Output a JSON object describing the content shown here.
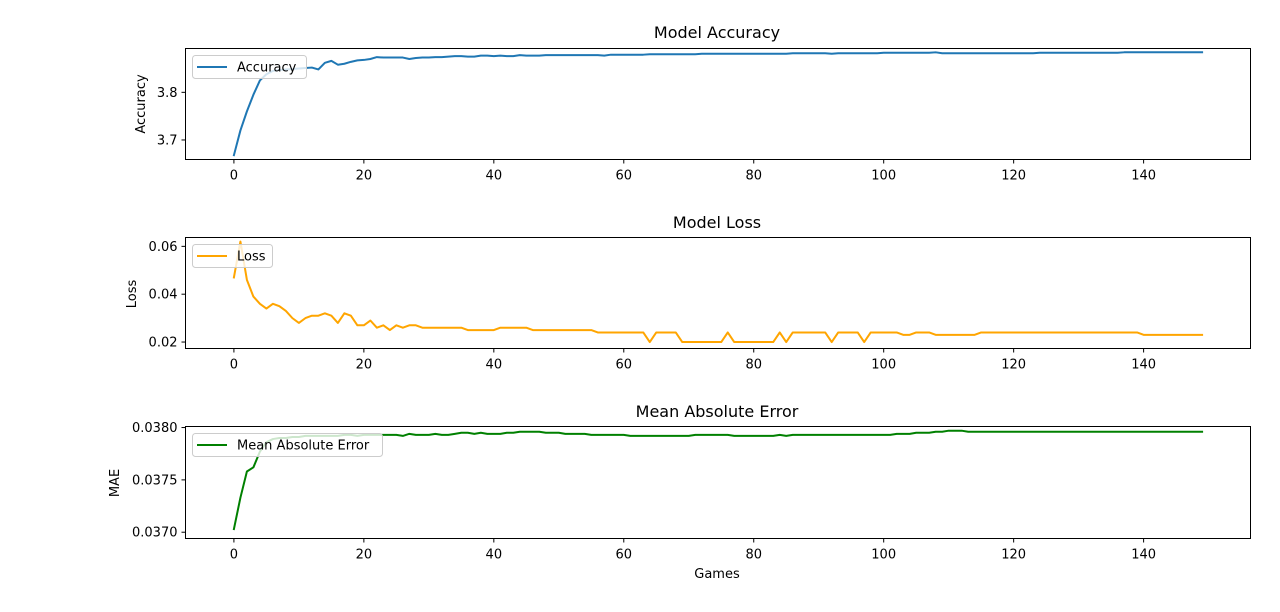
{
  "figure": {
    "xlabel": "Games"
  },
  "chart_data": [
    {
      "type": "line",
      "title": "Model Accuracy",
      "xlabel": "",
      "ylabel": "Accuracy",
      "xlim": [
        -7.45,
        156.45
      ],
      "ylim": [
        3.659,
        3.892
      ],
      "xticks": [
        0,
        20,
        40,
        60,
        80,
        100,
        120,
        140
      ],
      "yticks": [
        3.7,
        3.8
      ],
      "ytick_labels": [
        "3.7",
        "3.8"
      ],
      "legend": "upper left",
      "series": [
        {
          "name": "Accuracy",
          "color": "#1f77b4",
          "x": [
            0,
            1,
            2,
            3,
            4,
            5,
            6,
            7,
            8,
            9,
            10,
            11,
            12,
            13,
            14,
            15,
            16,
            17,
            18,
            19,
            20,
            21,
            22,
            23,
            24,
            25,
            26,
            27,
            28,
            29,
            30,
            31,
            32,
            33,
            34,
            35,
            36,
            37,
            38,
            39,
            40,
            41,
            42,
            43,
            44,
            45,
            46,
            47,
            48,
            49,
            50,
            51,
            52,
            53,
            54,
            55,
            56,
            57,
            58,
            59,
            60,
            61,
            62,
            63,
            64,
            65,
            66,
            67,
            68,
            69,
            70,
            71,
            72,
            73,
            74,
            75,
            76,
            77,
            78,
            79,
            80,
            81,
            82,
            83,
            84,
            85,
            86,
            87,
            88,
            89,
            90,
            91,
            92,
            93,
            94,
            95,
            96,
            97,
            98,
            99,
            100,
            101,
            102,
            103,
            104,
            105,
            106,
            107,
            108,
            109,
            110,
            111,
            112,
            113,
            114,
            115,
            116,
            117,
            118,
            119,
            120,
            121,
            122,
            123,
            124,
            125,
            126,
            127,
            128,
            129,
            130,
            131,
            132,
            133,
            134,
            135,
            136,
            137,
            138,
            139,
            140,
            141,
            142,
            143,
            144,
            145,
            146,
            147,
            148,
            149
          ],
          "values": [
            3.668,
            3.72,
            3.76,
            3.795,
            3.825,
            3.838,
            3.845,
            3.847,
            3.848,
            3.849,
            3.85,
            3.851,
            3.852,
            3.848,
            3.862,
            3.866,
            3.858,
            3.86,
            3.864,
            3.867,
            3.868,
            3.87,
            3.874,
            3.873,
            3.873,
            3.873,
            3.873,
            3.87,
            3.872,
            3.873,
            3.873,
            3.874,
            3.874,
            3.875,
            3.876,
            3.876,
            3.875,
            3.875,
            3.877,
            3.877,
            3.876,
            3.877,
            3.876,
            3.876,
            3.878,
            3.877,
            3.877,
            3.877,
            3.878,
            3.878,
            3.878,
            3.878,
            3.878,
            3.878,
            3.878,
            3.878,
            3.878,
            3.877,
            3.879,
            3.879,
            3.879,
            3.879,
            3.879,
            3.879,
            3.88,
            3.88,
            3.88,
            3.88,
            3.88,
            3.88,
            3.88,
            3.88,
            3.881,
            3.881,
            3.881,
            3.881,
            3.881,
            3.881,
            3.881,
            3.881,
            3.881,
            3.881,
            3.881,
            3.881,
            3.881,
            3.881,
            3.882,
            3.882,
            3.882,
            3.882,
            3.882,
            3.882,
            3.881,
            3.882,
            3.882,
            3.882,
            3.882,
            3.882,
            3.882,
            3.882,
            3.883,
            3.883,
            3.883,
            3.883,
            3.883,
            3.883,
            3.883,
            3.883,
            3.884,
            3.882,
            3.882,
            3.882,
            3.882,
            3.882,
            3.882,
            3.882,
            3.882,
            3.882,
            3.882,
            3.882,
            3.882,
            3.882,
            3.882,
            3.882,
            3.883,
            3.883,
            3.883,
            3.883,
            3.883,
            3.883,
            3.883,
            3.883,
            3.883,
            3.883,
            3.883,
            3.883,
            3.883,
            3.884,
            3.884,
            3.884,
            3.884,
            3.884,
            3.884,
            3.884,
            3.884,
            3.884,
            3.884,
            3.884,
            3.884,
            3.884
          ]
        }
      ]
    },
    {
      "type": "line",
      "title": "Model Loss",
      "xlabel": "",
      "ylabel": "Loss",
      "xlim": [
        -7.45,
        156.45
      ],
      "ylim": [
        0.0173,
        0.0637
      ],
      "xticks": [
        0,
        20,
        40,
        60,
        80,
        100,
        120,
        140
      ],
      "yticks": [
        0.02,
        0.04,
        0.06
      ],
      "ytick_labels": [
        "0.02",
        "0.04",
        "0.06"
      ],
      "legend": "upper left",
      "series": [
        {
          "name": "Loss",
          "color": "#ffa500",
          "x": [
            0,
            1,
            2,
            3,
            4,
            5,
            6,
            7,
            8,
            9,
            10,
            11,
            12,
            13,
            14,
            15,
            16,
            17,
            18,
            19,
            20,
            21,
            22,
            23,
            24,
            25,
            26,
            27,
            28,
            29,
            30,
            31,
            32,
            33,
            34,
            35,
            36,
            37,
            38,
            39,
            40,
            41,
            42,
            43,
            44,
            45,
            46,
            47,
            48,
            49,
            50,
            51,
            52,
            53,
            54,
            55,
            56,
            57,
            58,
            59,
            60,
            61,
            62,
            63,
            64,
            65,
            66,
            67,
            68,
            69,
            70,
            71,
            72,
            73,
            74,
            75,
            76,
            77,
            78,
            79,
            80,
            81,
            82,
            83,
            84,
            85,
            86,
            87,
            88,
            89,
            90,
            91,
            92,
            93,
            94,
            95,
            96,
            97,
            98,
            99,
            100,
            101,
            102,
            103,
            104,
            105,
            106,
            107,
            108,
            109,
            110,
            111,
            112,
            113,
            114,
            115,
            116,
            117,
            118,
            119,
            120,
            121,
            122,
            123,
            124,
            125,
            126,
            127,
            128,
            129,
            130,
            131,
            132,
            133,
            134,
            135,
            136,
            137,
            138,
            139,
            140,
            141,
            142,
            143,
            144,
            145,
            146,
            147,
            148,
            149
          ],
          "values": [
            0.047,
            0.062,
            0.046,
            0.039,
            0.036,
            0.034,
            0.036,
            0.035,
            0.033,
            0.03,
            0.028,
            0.03,
            0.031,
            0.031,
            0.032,
            0.031,
            0.028,
            0.032,
            0.031,
            0.027,
            0.027,
            0.029,
            0.026,
            0.027,
            0.025,
            0.027,
            0.026,
            0.027,
            0.027,
            0.026,
            0.026,
            0.026,
            0.026,
            0.026,
            0.026,
            0.026,
            0.025,
            0.025,
            0.025,
            0.025,
            0.025,
            0.026,
            0.026,
            0.026,
            0.026,
            0.026,
            0.025,
            0.025,
            0.025,
            0.025,
            0.025,
            0.025,
            0.025,
            0.025,
            0.025,
            0.025,
            0.024,
            0.024,
            0.024,
            0.024,
            0.024,
            0.024,
            0.024,
            0.024,
            0.02,
            0.024,
            0.024,
            0.024,
            0.024,
            0.02,
            0.02,
            0.02,
            0.02,
            0.02,
            0.02,
            0.02,
            0.024,
            0.02,
            0.02,
            0.02,
            0.02,
            0.02,
            0.02,
            0.02,
            0.024,
            0.02,
            0.024,
            0.024,
            0.024,
            0.024,
            0.024,
            0.024,
            0.02,
            0.024,
            0.024,
            0.024,
            0.024,
            0.02,
            0.024,
            0.024,
            0.024,
            0.024,
            0.024,
            0.023,
            0.023,
            0.024,
            0.024,
            0.024,
            0.023,
            0.023,
            0.023,
            0.023,
            0.023,
            0.023,
            0.023,
            0.024,
            0.024,
            0.024,
            0.024,
            0.024,
            0.024,
            0.024,
            0.024,
            0.024,
            0.024,
            0.024,
            0.024,
            0.024,
            0.024,
            0.024,
            0.024,
            0.024,
            0.024,
            0.024,
            0.024,
            0.024,
            0.024,
            0.024,
            0.024,
            0.024,
            0.023,
            0.023,
            0.023,
            0.023,
            0.023,
            0.023,
            0.023,
            0.023,
            0.023,
            0.023
          ]
        }
      ]
    },
    {
      "type": "line",
      "title": "Mean Absolute Error",
      "xlabel": "Games",
      "ylabel": "MAE",
      "xlim": [
        -7.45,
        156.45
      ],
      "ylim": [
        0.03694,
        0.03801
      ],
      "xticks": [
        0,
        20,
        40,
        60,
        80,
        100,
        120,
        140
      ],
      "yticks": [
        0.037,
        0.0375,
        0.038
      ],
      "ytick_labels": [
        "0.0370",
        "0.0375",
        "0.0380"
      ],
      "legend": "upper left",
      "series": [
        {
          "name": "Mean Absolute Error",
          "color": "#008000",
          "x": [
            0,
            1,
            2,
            3,
            4,
            5,
            6,
            7,
            8,
            9,
            10,
            11,
            12,
            13,
            14,
            15,
            16,
            17,
            18,
            19,
            20,
            21,
            22,
            23,
            24,
            25,
            26,
            27,
            28,
            29,
            30,
            31,
            32,
            33,
            34,
            35,
            36,
            37,
            38,
            39,
            40,
            41,
            42,
            43,
            44,
            45,
            46,
            47,
            48,
            49,
            50,
            51,
            52,
            53,
            54,
            55,
            56,
            57,
            58,
            59,
            60,
            61,
            62,
            63,
            64,
            65,
            66,
            67,
            68,
            69,
            70,
            71,
            72,
            73,
            74,
            75,
            76,
            77,
            78,
            79,
            80,
            81,
            82,
            83,
            84,
            85,
            86,
            87,
            88,
            89,
            90,
            91,
            92,
            93,
            94,
            95,
            96,
            97,
            98,
            99,
            100,
            101,
            102,
            103,
            104,
            105,
            106,
            107,
            108,
            109,
            110,
            111,
            112,
            113,
            114,
            115,
            116,
            117,
            118,
            119,
            120,
            121,
            122,
            123,
            124,
            125,
            126,
            127,
            128,
            129,
            130,
            131,
            132,
            133,
            134,
            135,
            136,
            137,
            138,
            139,
            140,
            141,
            142,
            143,
            144,
            145,
            146,
            147,
            148,
            149
          ],
          "values": [
            0.03703,
            0.03733,
            0.03758,
            0.03762,
            0.03777,
            0.03786,
            0.03789,
            0.0379,
            0.0379,
            0.03791,
            0.03791,
            0.03792,
            0.03792,
            0.03792,
            0.03792,
            0.03792,
            0.03792,
            0.03793,
            0.03793,
            0.03792,
            0.03793,
            0.03793,
            0.03793,
            0.03793,
            0.03793,
            0.03793,
            0.03792,
            0.03794,
            0.03793,
            0.03793,
            0.03793,
            0.03794,
            0.03793,
            0.03793,
            0.03794,
            0.03795,
            0.03795,
            0.03794,
            0.03795,
            0.03794,
            0.03794,
            0.03794,
            0.03795,
            0.03795,
            0.03796,
            0.03796,
            0.03796,
            0.03796,
            0.03795,
            0.03795,
            0.03795,
            0.03794,
            0.03794,
            0.03794,
            0.03794,
            0.03793,
            0.03793,
            0.03793,
            0.03793,
            0.03793,
            0.03793,
            0.03792,
            0.03792,
            0.03792,
            0.03792,
            0.03792,
            0.03792,
            0.03792,
            0.03792,
            0.03792,
            0.03792,
            0.03793,
            0.03793,
            0.03793,
            0.03793,
            0.03793,
            0.03793,
            0.03792,
            0.03792,
            0.03792,
            0.03792,
            0.03792,
            0.03792,
            0.03792,
            0.03793,
            0.03792,
            0.03793,
            0.03793,
            0.03793,
            0.03793,
            0.03793,
            0.03793,
            0.03793,
            0.03793,
            0.03793,
            0.03793,
            0.03793,
            0.03793,
            0.03793,
            0.03793,
            0.03793,
            0.03793,
            0.03794,
            0.03794,
            0.03794,
            0.03795,
            0.03795,
            0.03795,
            0.03796,
            0.03796,
            0.03797,
            0.03797,
            0.03797,
            0.03796,
            0.03796,
            0.03796,
            0.03796,
            0.03796,
            0.03796,
            0.03796,
            0.03796,
            0.03796,
            0.03796,
            0.03796,
            0.03796,
            0.03796,
            0.03796,
            0.03796,
            0.03796,
            0.03796,
            0.03796,
            0.03796,
            0.03796,
            0.03796,
            0.03796,
            0.03796,
            0.03796,
            0.03796,
            0.03796,
            0.03796,
            0.03796,
            0.03796,
            0.03796,
            0.03796,
            0.03796,
            0.03796,
            0.03796,
            0.03796,
            0.03796,
            0.03796
          ]
        }
      ]
    }
  ]
}
